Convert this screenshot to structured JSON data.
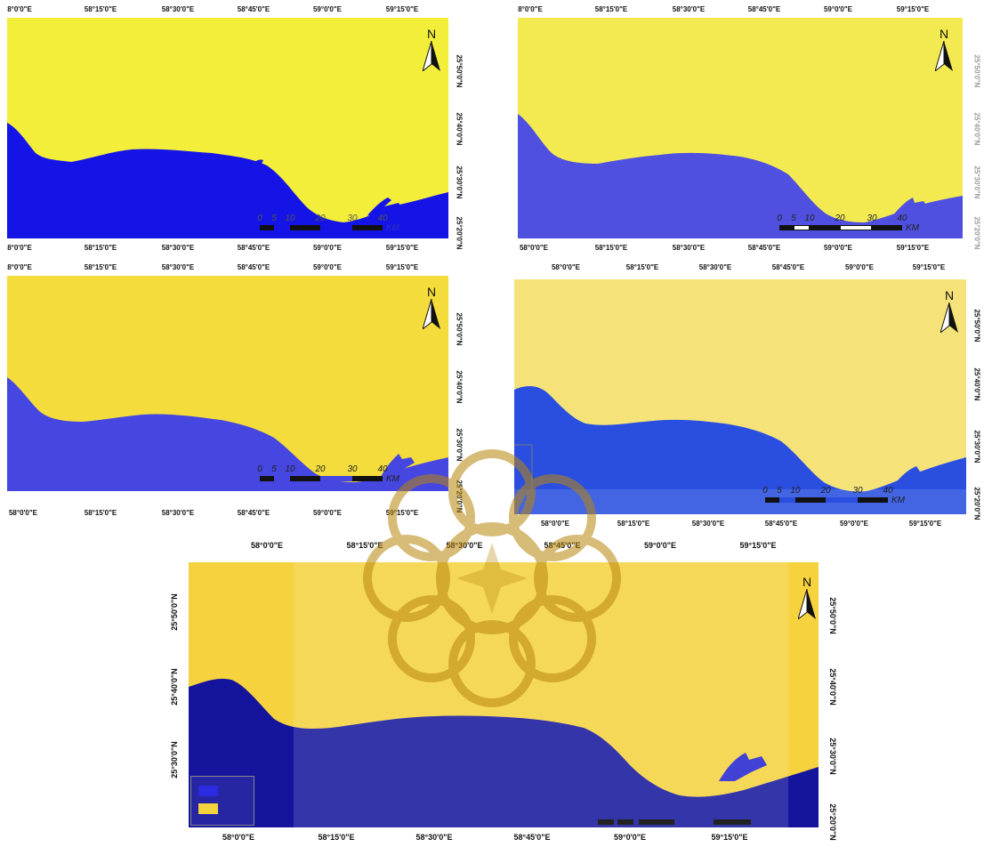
{
  "colors": {
    "land_yellow_1": "#F2EE3A",
    "water_blue_1": "#1414E6",
    "land_yellow_2": "#F3EA52",
    "water_blue_2": "#5050E0",
    "land_yellow_3": "#F3DC3C",
    "water_blue_3": "#4646E0",
    "land_yellow_4": "#F5E37A",
    "water_blue_4": "#2A4FE0",
    "land_yellow_5": "#F5D23E",
    "water_blue_5": "#14149C",
    "watermark": "#B8860B"
  },
  "panels": [
    {
      "id": "p1",
      "top_ticks": [
        "8°0'0\"E",
        "58°15'0\"E",
        "58°30'0\"E",
        "58°45'0\"E",
        "59°0'0\"E",
        "59°15'0\"E"
      ],
      "bottom_ticks": [
        "8°0'0\"E",
        "58°15'0\"E",
        "58°30'0\"E",
        "58°45'0\"E",
        "59°0'0\"E",
        "59°15'0\"E"
      ],
      "right_ticks": [
        "25°50'0\"N",
        "25°40'0\"N",
        "25°30'0\"N",
        "25°20'0\"N"
      ],
      "north": "N",
      "scale_labels": [
        "0",
        "5",
        "10",
        "20",
        "30",
        "40"
      ],
      "scale_unit": "KM"
    },
    {
      "id": "p2",
      "top_ticks": [
        "8°0'0\"E",
        "58°15'0\"E",
        "58°30'0\"E",
        "58°45'0\"E",
        "59°0'0\"E",
        "59°15'0\"E"
      ],
      "bottom_ticks": [
        "58°0'0\"E",
        "58°15'0\"E",
        "58°30'0\"E",
        "58°45'0\"E",
        "59°0'0\"E",
        "59°15'0\"E"
      ],
      "right_ticks": [
        "25°50'0\"N",
        "25°40'0\"N",
        "25°30'0\"N",
        "25°20'0\"N"
      ],
      "north": "N",
      "scale_labels": [
        "0",
        "5",
        "10",
        "20",
        "30",
        "40"
      ],
      "scale_unit": "KM"
    },
    {
      "id": "p3",
      "top_ticks": [
        "8°0'0\"E",
        "58°15'0\"E",
        "58°30'0\"E",
        "58°45'0\"E",
        "59°0'0\"E",
        "59°15'0\"E"
      ],
      "bottom_ticks": [
        "58°0'0\"E",
        "58°15'0\"E",
        "58°30'0\"E",
        "58°45'0\"E",
        "59°0'0\"E",
        "59°15'0\"E"
      ],
      "right_ticks": [
        "25°50'0\"N",
        "25°40'0\"N",
        "25°30'0\"N",
        "25°20'0\"N"
      ],
      "north": "N",
      "scale_labels": [
        "0",
        "5",
        "10",
        "20",
        "30",
        "40"
      ],
      "scale_unit": "KM"
    },
    {
      "id": "p4",
      "top_ticks": [
        "58°0'0\"E",
        "58°15'0\"E",
        "58°30'0\"E",
        "58°45'0\"E",
        "59°0'0\"E",
        "59°15'0\"E"
      ],
      "bottom_ticks": [
        "58°0'0\"E",
        "58°15'0\"E",
        "58°30'0\"E",
        "58°45'0\"E",
        "59°0'0\"E",
        "59°15'0\"E"
      ],
      "right_ticks": [
        "25°50'0\"N",
        "25°40'0\"N",
        "25°30'0\"N",
        "25°20'0\"N"
      ],
      "north": "N",
      "scale_labels": [
        "0",
        "5",
        "10",
        "20",
        "30",
        "40"
      ],
      "scale_unit": "KM"
    },
    {
      "id": "p5",
      "top_ticks": [
        "58°0'0\"E",
        "58°15'0\"E",
        "58°30'0\"E",
        "58°45'0\"E",
        "59°0'0\"E",
        "59°15'0\"E"
      ],
      "bottom_ticks": [
        "58°0'0\"E",
        "58°15'0\"E",
        "58°30'0\"E",
        "58°45'0\"E",
        "59°0'0\"E",
        "59°15'0\"E"
      ],
      "left_ticks": [
        "25°50'0\"N",
        "25°40'0\"N",
        "25°30'0\"N"
      ],
      "right_ticks": [
        "25°50'0\"N",
        "25°40'0\"N",
        "25°30'0\"N",
        "25°20'0\"N"
      ],
      "north": "N"
    }
  ]
}
